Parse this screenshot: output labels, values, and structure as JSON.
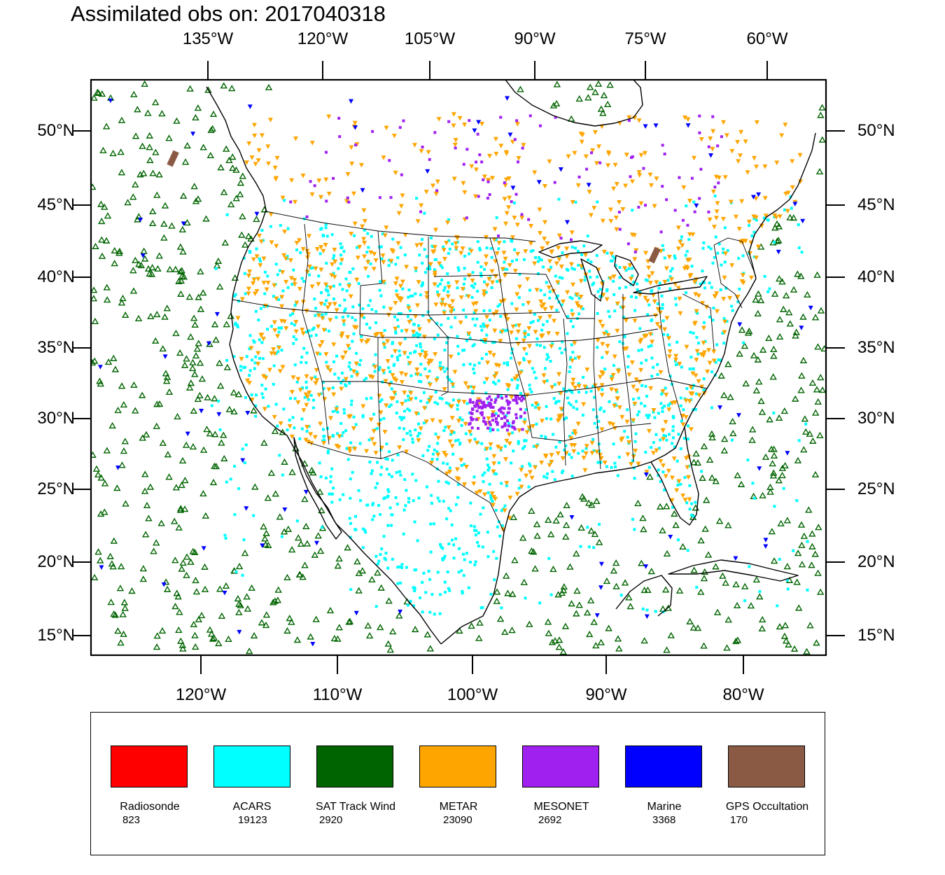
{
  "title": "Assimilated obs on: 2017040318",
  "top_axis": {
    "labels": [
      {
        "id": "135w",
        "text": "135°W"
      },
      {
        "id": "120w",
        "text": "120°W"
      },
      {
        "id": "105w",
        "text": "105°W"
      },
      {
        "id": "90w",
        "text": "90°W"
      },
      {
        "id": "75w",
        "text": "75°W"
      },
      {
        "id": "60w",
        "text": "60°W"
      }
    ]
  },
  "bottom_axis": {
    "labels": [
      {
        "id": "120w",
        "text": "120°W"
      },
      {
        "id": "110w",
        "text": "110°W"
      },
      {
        "id": "100w",
        "text": "100°W"
      },
      {
        "id": "90w",
        "text": "90°W"
      },
      {
        "id": "80w",
        "text": "80°W"
      }
    ]
  },
  "lat_axis": {
    "labels": [
      {
        "id": "50n",
        "text": "50°N"
      },
      {
        "id": "45n",
        "text": "45°N"
      },
      {
        "id": "40n",
        "text": "40°N"
      },
      {
        "id": "35n",
        "text": "35°N"
      },
      {
        "id": "30n",
        "text": "30°N"
      },
      {
        "id": "25n",
        "text": "25°N"
      },
      {
        "id": "20n",
        "text": "20°N"
      },
      {
        "id": "15n",
        "text": "15°N"
      }
    ]
  },
  "legend": {
    "items": [
      {
        "name": "Radiosonde",
        "count": "823",
        "color": "#ff0000"
      },
      {
        "name": "ACARS",
        "count": "19123",
        "color": "#00ffff"
      },
      {
        "name": "SAT Track Wind",
        "count": "2920",
        "color": "#006400"
      },
      {
        "name": "METAR",
        "count": "23090",
        "color": "#ffa500"
      },
      {
        "name": "MESONET",
        "count": "2692",
        "color": "#a020f0"
      },
      {
        "name": "Marine",
        "count": "3368",
        "color": "#0000ff"
      },
      {
        "name": "GPS Occultation",
        "count": "170",
        "color": "#8b5a44"
      }
    ]
  },
  "colors": {
    "acars": "#00ffff",
    "metar": "#ffa500",
    "sat_wind": "#006400",
    "mesonet": "#a020f0",
    "marine": "#0000ff",
    "gps": "#8b5a44",
    "radiosonde": "#ff0000"
  }
}
